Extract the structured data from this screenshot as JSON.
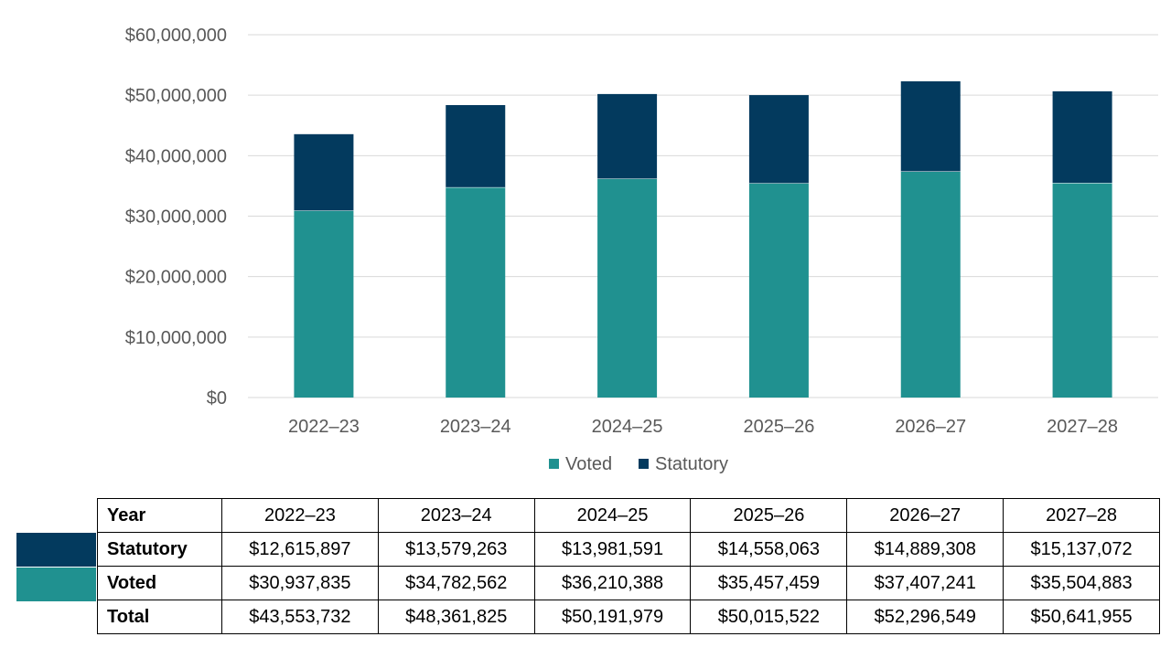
{
  "colors": {
    "voted": "#209190",
    "statutory": "#033A5E",
    "grid": "#d9d9d9",
    "tick_text": "#595959"
  },
  "chart_data": {
    "type": "bar",
    "stacked": true,
    "categories": [
      "2022–23",
      "2023–24",
      "2024–25",
      "2025–26",
      "2026–27",
      "2027–28"
    ],
    "series": [
      {
        "name": "Voted",
        "color": "#209190",
        "values": [
          30937835,
          34782562,
          36210388,
          35457459,
          37407241,
          35504883
        ]
      },
      {
        "name": "Statutory",
        "color": "#033A5E",
        "values": [
          12615897,
          13579263,
          13981591,
          14558063,
          14889308,
          15137072
        ]
      }
    ],
    "ylim": [
      0,
      60000000
    ],
    "yticks": [
      0,
      10000000,
      20000000,
      30000000,
      40000000,
      50000000,
      60000000
    ],
    "ytick_labels": [
      "$0",
      "$10,000,000",
      "$20,000,000",
      "$30,000,000",
      "$40,000,000",
      "$50,000,000",
      "$60,000,000"
    ],
    "grid": true,
    "legend_position": "bottom",
    "title": "",
    "xlabel": "",
    "ylabel": ""
  },
  "table": {
    "header": {
      "label": "Year",
      "cells": [
        "2022–23",
        "2023–24",
        "2024–25",
        "2025–26",
        "2026–27",
        "2027–28"
      ]
    },
    "rows": [
      {
        "label": "Statutory",
        "swatch": "#033A5E",
        "cells": [
          "$12,615,897",
          "$13,579,263",
          "$13,981,591",
          "$14,558,063",
          "$14,889,308",
          "$15,137,072"
        ]
      },
      {
        "label": "Voted",
        "swatch": "#209190",
        "cells": [
          "$30,937,835",
          "$34,782,562",
          "$36,210,388",
          "$35,457,459",
          "$37,407,241",
          "$35,504,883"
        ]
      },
      {
        "label": "Total",
        "cells": [
          "$43,553,732",
          "$48,361,825",
          "$50,191,979",
          "$50,015,522",
          "$52,296,549",
          "$50,641,955"
        ]
      }
    ]
  }
}
